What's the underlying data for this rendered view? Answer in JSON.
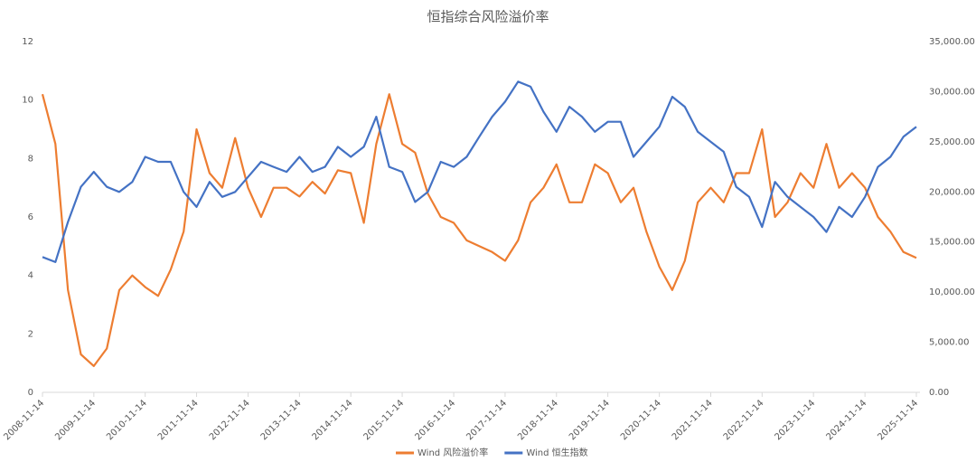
{
  "chart_data": {
    "type": "line",
    "title": "恒指综合风险溢价率",
    "x": [
      "2008-11-14",
      "2009-02-14",
      "2009-05-14",
      "2009-08-14",
      "2009-11-14",
      "2010-02-14",
      "2010-05-14",
      "2010-08-14",
      "2010-11-14",
      "2011-02-14",
      "2011-05-14",
      "2011-08-14",
      "2011-11-14",
      "2012-02-14",
      "2012-05-14",
      "2012-08-14",
      "2012-11-14",
      "2013-02-14",
      "2013-05-14",
      "2013-08-14",
      "2013-11-14",
      "2014-02-14",
      "2014-05-14",
      "2014-08-14",
      "2014-11-14",
      "2015-02-14",
      "2015-05-14",
      "2015-08-14",
      "2015-11-14",
      "2016-02-14",
      "2016-05-14",
      "2016-08-14",
      "2016-11-14",
      "2017-02-14",
      "2017-05-14",
      "2017-08-14",
      "2017-11-14",
      "2018-02-14",
      "2018-05-14",
      "2018-08-14",
      "2018-11-14",
      "2019-02-14",
      "2019-05-14",
      "2019-08-14",
      "2019-11-14",
      "2020-02-14",
      "2020-05-14",
      "2020-08-14",
      "2020-11-14",
      "2021-02-14",
      "2021-05-14",
      "2021-08-14",
      "2021-11-14",
      "2022-02-14",
      "2022-05-14",
      "2022-08-14",
      "2022-11-14",
      "2023-02-14",
      "2023-05-14",
      "2023-08-14",
      "2023-11-14",
      "2024-02-14",
      "2024-05-14",
      "2024-08-14",
      "2024-11-14",
      "2025-02-14",
      "2025-05-14",
      "2025-08-14",
      "2025-11-14"
    ],
    "series": [
      {
        "name": "Wind 风险溢价率",
        "color": "#ed7d31",
        "values": [
          10.2,
          8.5,
          3.5,
          1.3,
          0.9,
          1.5,
          3.5,
          4.0,
          3.6,
          3.3,
          4.2,
          5.5,
          9.0,
          7.5,
          7.0,
          8.7,
          7.0,
          6.0,
          7.0,
          7.0,
          6.7,
          7.2,
          6.8,
          7.6,
          7.5,
          5.8,
          8.5,
          10.2,
          8.5,
          8.2,
          6.8,
          6.0,
          5.8,
          5.2,
          5.0,
          4.8,
          4.5,
          5.2,
          6.5,
          7.0,
          7.8,
          6.5,
          6.5,
          7.8,
          7.5,
          6.5,
          7.0,
          5.5,
          4.3,
          3.5,
          4.5,
          6.5,
          7.0,
          6.5,
          7.5,
          7.5,
          9.0,
          6.0,
          6.5,
          7.5,
          7.0,
          8.5,
          7.0,
          7.5,
          7.0,
          6.0,
          5.5,
          4.8,
          4.6
        ]
      },
      {
        "name": "Wind 恒生指数",
        "color": "#4472c4",
        "axis": "y2",
        "values": [
          13500,
          13000,
          17000,
          20500,
          22000,
          20500,
          20000,
          21000,
          23500,
          23000,
          23000,
          20000,
          18500,
          21000,
          19500,
          20000,
          21500,
          23000,
          22500,
          22000,
          23500,
          22000,
          22500,
          24500,
          23500,
          24500,
          27500,
          22500,
          22000,
          19000,
          20000,
          23000,
          22500,
          23500,
          25500,
          27500,
          29000,
          31000,
          30500,
          28000,
          26000,
          28500,
          27500,
          26000,
          27000,
          27000,
          23500,
          25000,
          26500,
          29500,
          28500,
          26000,
          25000,
          24000,
          20500,
          19500,
          16500,
          21000,
          19500,
          18500,
          17500,
          16000,
          18500,
          17500,
          19500,
          22500,
          23500,
          25500,
          26500
        ]
      }
    ],
    "xlim": [
      "2008-11-14",
      "2025-11-14"
    ],
    "xticks": [
      "2008-11-14",
      "2009-11-14",
      "2010-11-14",
      "2011-11-14",
      "2012-11-14",
      "2013-11-14",
      "2014-11-14",
      "2015-11-14",
      "2016-11-14",
      "2017-11-14",
      "2018-11-14",
      "2019-11-14",
      "2020-11-14",
      "2021-11-14",
      "2022-11-14",
      "2023-11-14",
      "2024-11-14",
      "2025-11-14"
    ],
    "ylim": [
      0,
      12
    ],
    "yticks": [
      0,
      2,
      4,
      6,
      8,
      10,
      12
    ],
    "y2lim": [
      0,
      35000
    ],
    "y2ticks": [
      {
        "value": 0,
        "label": "0.00"
      },
      {
        "value": 5000,
        "label": "5,000.00"
      },
      {
        "value": 10000,
        "label": "10,000.00"
      },
      {
        "value": 15000,
        "label": "15,000.00"
      },
      {
        "value": 20000,
        "label": "20,000.00"
      },
      {
        "value": 25000,
        "label": "25,000.00"
      },
      {
        "value": 30000,
        "label": "30,000.00"
      },
      {
        "value": 35000,
        "label": "35,000.00"
      }
    ],
    "legend": "bottom"
  }
}
